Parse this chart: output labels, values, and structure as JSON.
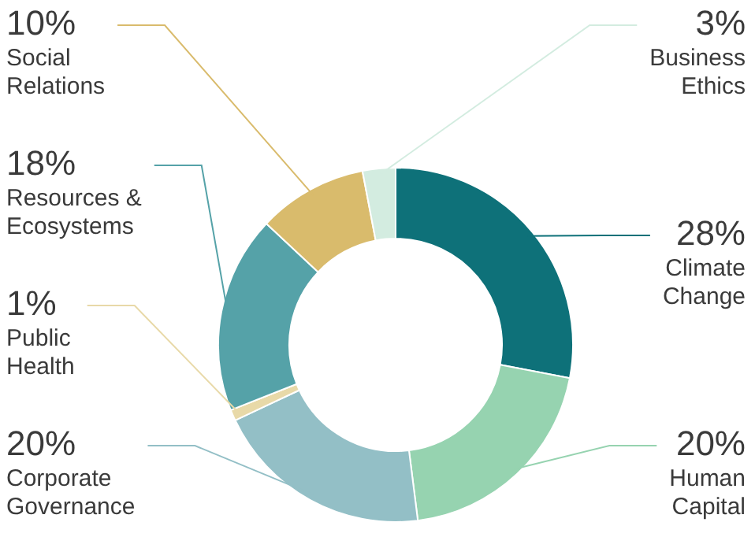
{
  "chart_data": {
    "type": "donut",
    "categories": [
      "Climate Change",
      "Human Capital",
      "Corporate Governance",
      "Public Health",
      "Resources & Ecosystems",
      "Social Relations",
      "Business Ethics"
    ],
    "values": [
      28,
      20,
      20,
      1,
      18,
      10,
      3
    ],
    "colors": [
      "#0e7179",
      "#96d3b0",
      "#93bfc6",
      "#e8d9a8",
      "#55a2a8",
      "#d9bb6c",
      "#d3ece0"
    ],
    "value_labels": [
      "28%",
      "20%",
      "20%",
      "1%",
      "18%",
      "10%",
      "3%"
    ],
    "legend": false
  }
}
